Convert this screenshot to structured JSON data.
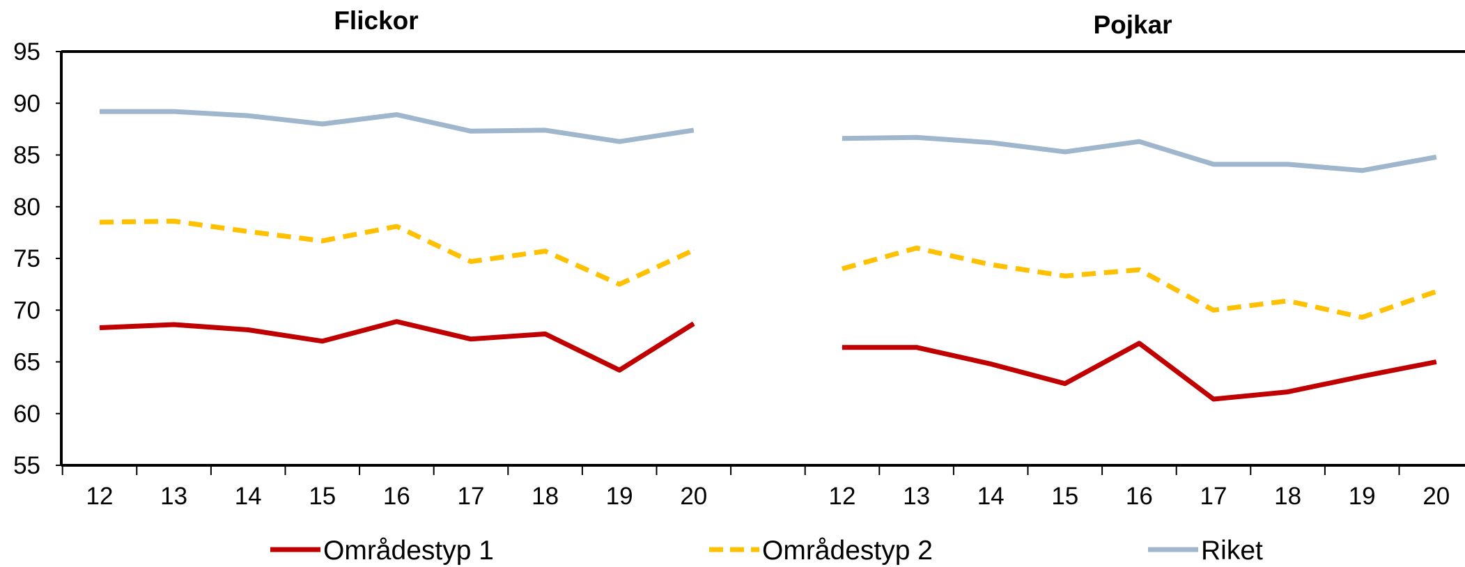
{
  "chart_data": {
    "type": "line",
    "ylim": [
      55,
      95
    ],
    "yticks": [
      55,
      60,
      65,
      70,
      75,
      80,
      85,
      90,
      95
    ],
    "grid": false,
    "legend_position": "bottom",
    "colors": {
      "Områdestyp 1": "#C00000",
      "Områdestyp 2": "#FFC000",
      "Riket": "#9FB6CD"
    },
    "panels": [
      {
        "title": "Flickor",
        "categories": [
          "12",
          "13",
          "14",
          "15",
          "16",
          "17",
          "18",
          "19",
          "20"
        ],
        "series": [
          {
            "name": "Områdestyp 1",
            "style": "solid",
            "values": [
              68.3,
              68.6,
              68.1,
              67.0,
              68.9,
              67.2,
              67.7,
              64.2,
              68.7
            ]
          },
          {
            "name": "Områdestyp 2",
            "style": "dashed",
            "values": [
              78.5,
              78.6,
              77.6,
              76.7,
              78.1,
              74.7,
              75.7,
              72.5,
              75.8
            ]
          },
          {
            "name": "Riket",
            "style": "solid",
            "values": [
              89.2,
              89.2,
              88.8,
              88.0,
              88.9,
              87.3,
              87.4,
              86.3,
              87.4
            ]
          }
        ]
      },
      {
        "title": "Pojkar",
        "categories": [
          "12",
          "13",
          "14",
          "15",
          "16",
          "17",
          "18",
          "19",
          "20"
        ],
        "series": [
          {
            "name": "Områdestyp 1",
            "style": "solid",
            "values": [
              66.4,
              66.4,
              64.8,
              62.9,
              66.8,
              61.4,
              62.1,
              63.6,
              65.0
            ]
          },
          {
            "name": "Områdestyp 2",
            "style": "dashed",
            "values": [
              74.0,
              76.0,
              74.4,
              73.3,
              73.9,
              70.0,
              70.9,
              69.3,
              71.8
            ]
          },
          {
            "name": "Riket",
            "style": "solid",
            "values": [
              86.6,
              86.7,
              86.2,
              85.3,
              86.3,
              84.1,
              84.1,
              83.5,
              84.8
            ]
          }
        ]
      }
    ],
    "legend": [
      {
        "label": "Områdestyp 1",
        "style": "solid"
      },
      {
        "label": "Områdestyp 2",
        "style": "dashed"
      },
      {
        "label": "Riket",
        "style": "solid"
      }
    ]
  }
}
